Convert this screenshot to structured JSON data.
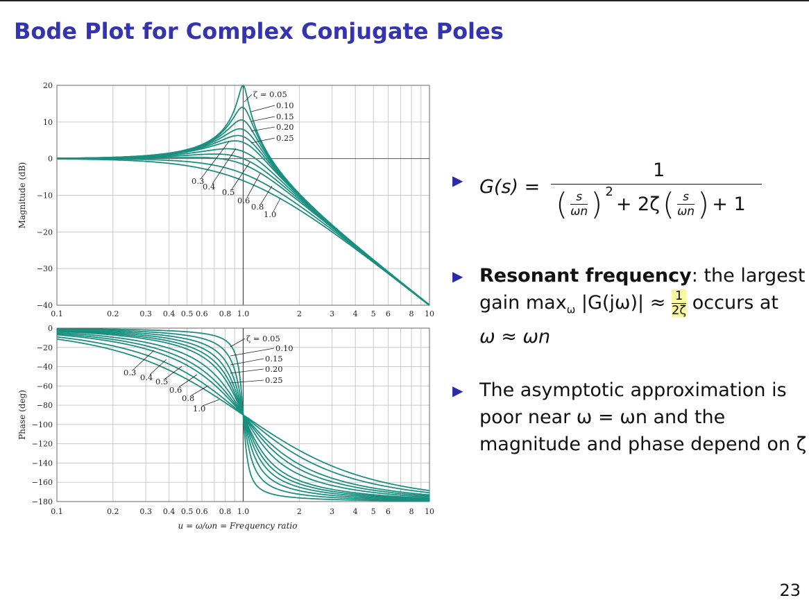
{
  "title": "Bode Plot for Complex Conjugate Poles",
  "page_number": "23",
  "bullets": [
    {
      "formula_lhs": "G(s) =",
      "numerator": "1",
      "denominator_a": "s",
      "denominator_b": "ωn",
      "square": "2",
      "middle": "+ 2ζ",
      "tail": "+ 1"
    },
    {
      "bold": "Resonant frequency",
      "text1": ": the largest gain max",
      "sub": "ω",
      "text2": " |G(jω)| ≈ ",
      "frac_num": "1",
      "frac_den": "2ζ",
      "text3": " occurs at",
      "text4": "ω ≈ ωn"
    },
    {
      "line1": "The asymptotic approximation is",
      "line2": "poor near ω = ωn and the",
      "line3": "magnitude and phase depend on ζ"
    }
  ],
  "colors": {
    "title": "#3434b0",
    "curve": "#1a8f80",
    "bullet": "#2a2aa8",
    "highlight": "#fbf9a0"
  },
  "chart_data": [
    {
      "type": "line",
      "title": "",
      "xlabel": "",
      "ylabel": "Magnitude (dB)",
      "xscale": "log",
      "xlim": [
        0.1,
        10
      ],
      "ylim": [
        -40,
        20
      ],
      "xticks": [
        "0.1",
        "0.2",
        "0.3",
        "0.4",
        "0.5",
        "0.6",
        "0.8",
        "1.0",
        "2",
        "3",
        "4",
        "5",
        "6",
        "8",
        "10"
      ],
      "yticks": [
        "20",
        "10",
        "0",
        "−10",
        "−20",
        "−30",
        "−40"
      ],
      "grid": true,
      "model": "20log10 |1/(1 − u² + j2ζu)|",
      "series": [
        {
          "name": "ζ = 0.05",
          "zeta": 0.05,
          "peak_db": 20.0
        },
        {
          "name": "0.10",
          "zeta": 0.1,
          "peak_db": 14.0
        },
        {
          "name": "0.15",
          "zeta": 0.15,
          "peak_db": 10.5
        },
        {
          "name": "0.20",
          "zeta": 0.2,
          "peak_db": 8.0
        },
        {
          "name": "0.25",
          "zeta": 0.25,
          "peak_db": 6.0
        },
        {
          "name": "0.3",
          "zeta": 0.3,
          "peak_db": 4.4
        },
        {
          "name": "0.4",
          "zeta": 0.4,
          "peak_db": 2.0
        },
        {
          "name": "0.5",
          "zeta": 0.5,
          "peak_db": 0.0
        },
        {
          "name": "0.6",
          "zeta": 0.6,
          "peak_db": -1.6
        },
        {
          "name": "0.8",
          "zeta": 0.8,
          "peak_db": -4.1
        },
        {
          "name": "1.0",
          "zeta": 1.0,
          "peak_db": -6.0
        }
      ]
    },
    {
      "type": "line",
      "title": "",
      "xlabel": "u = ω/ωn = Frequency ratio",
      "ylabel": "Phase (deg)",
      "xscale": "log",
      "xlim": [
        0.1,
        10
      ],
      "ylim": [
        -180,
        0
      ],
      "xticks": [
        "0.1",
        "0.2",
        "0.3",
        "0.4",
        "0.5",
        "0.6",
        "0.8",
        "1.0",
        "2",
        "3",
        "4",
        "5",
        "6",
        "8",
        "10"
      ],
      "yticks": [
        "0",
        "−20",
        "−40",
        "−60",
        "−80",
        "−100",
        "−120",
        "−140",
        "−160",
        "−180"
      ],
      "grid": true,
      "model": "−atan2(2ζu, 1 − u²)",
      "phase_at_u1": -90,
      "series": [
        {
          "name": "ζ = 0.05",
          "zeta": 0.05
        },
        {
          "name": "0.10",
          "zeta": 0.1
        },
        {
          "name": "0.15",
          "zeta": 0.15
        },
        {
          "name": "0.20",
          "zeta": 0.2
        },
        {
          "name": "0.25",
          "zeta": 0.25
        },
        {
          "name": "0.3",
          "zeta": 0.3
        },
        {
          "name": "0.4",
          "zeta": 0.4
        },
        {
          "name": "0.5",
          "zeta": 0.5
        },
        {
          "name": "0.6",
          "zeta": 0.6
        },
        {
          "name": "0.8",
          "zeta": 0.8
        },
        {
          "name": "1.0",
          "zeta": 1.0
        }
      ]
    }
  ]
}
